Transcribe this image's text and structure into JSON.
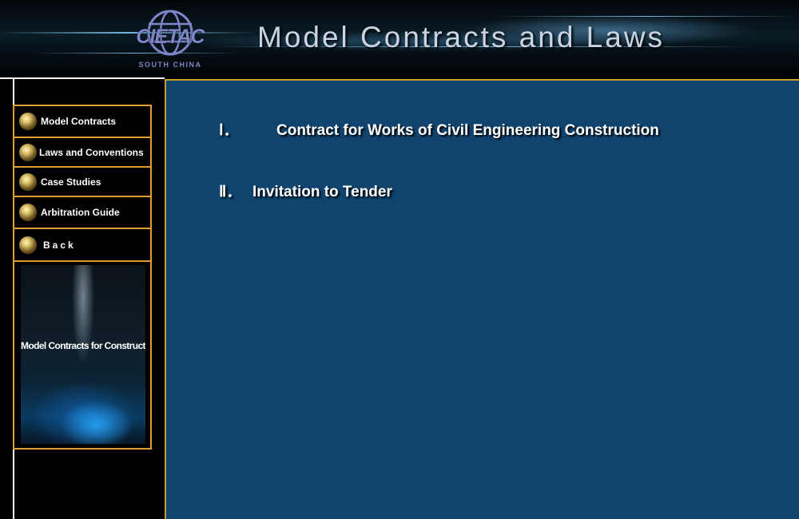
{
  "header": {
    "logo_text": "CIETAC",
    "logo_subtext": "SOUTH CHINA",
    "title": "Model Contracts and Laws"
  },
  "sidebar": {
    "items": [
      {
        "label": "Model Contracts",
        "icon": "orb-bullet-icon"
      },
      {
        "label": "Laws and Conventions",
        "icon": "orb-bullet-icon"
      },
      {
        "label": "Case Studies",
        "icon": "orb-bullet-icon"
      },
      {
        "label": "Arbitration Guide",
        "icon": "orb-bullet-icon"
      },
      {
        "label": "Back",
        "icon": "orb-bullet-icon"
      }
    ],
    "promo_text": "Model Contracts for Construction"
  },
  "main": {
    "items": [
      {
        "number": "Ⅰ．",
        "title": "Contract for Works of Civil Engineering Construction"
      },
      {
        "number": "Ⅱ．",
        "title": "Invitation to Tender"
      }
    ]
  },
  "colors": {
    "accent_border": "#e0a030",
    "content_background": "#10446e",
    "logo": "#7e86c8"
  }
}
